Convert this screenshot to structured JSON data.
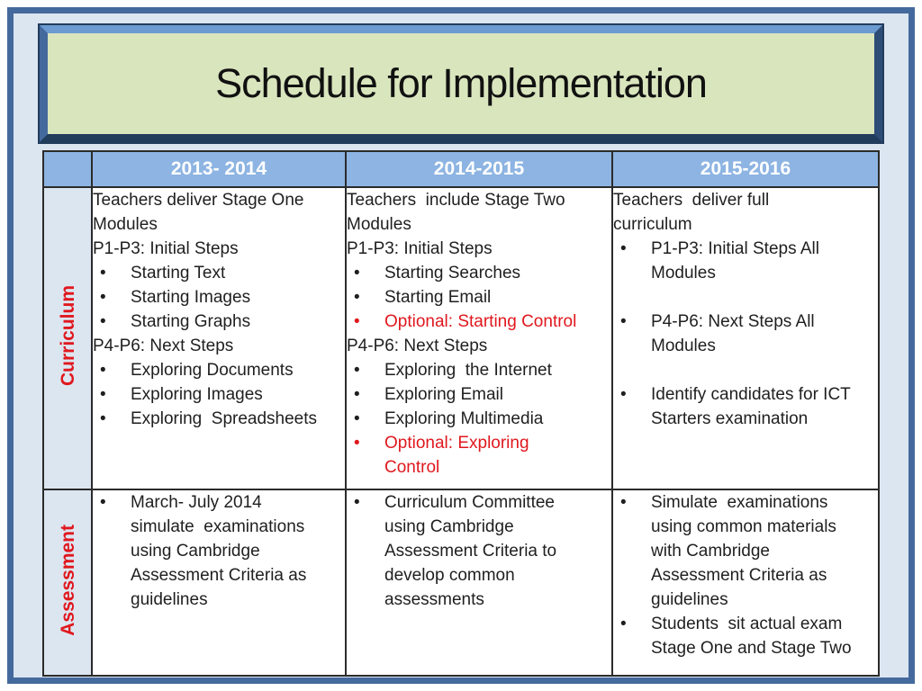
{
  "slide": {
    "title": "Schedule for Implementation"
  },
  "colors": {
    "page_bg": "#FFFFFF",
    "frame_border": "#44699C",
    "slide_bg": "#DCE6F1",
    "title_bg": "#D9E5BD",
    "bevel_top": "#6C9BD2",
    "bevel_left": "#44699C",
    "bevel_right": "#2E4D76",
    "bevel_bottom": "#223C5C",
    "title_text": "#111111",
    "header_bg": "#8DB4E2",
    "header_text": "#FFFFFF",
    "label_bg": "#DCE6F1",
    "accent_red": "#E0181E",
    "cell_bg": "#FFFFFF",
    "body_text": "#1F1F1F",
    "table_border": "#2B2B2B"
  },
  "table": {
    "corner": "",
    "columns": [
      "2013- 2014",
      "2014-2015",
      "2015-2016"
    ],
    "rows": [
      {
        "label": "Curriculum",
        "cells": [
          {
            "lines": [
              {
                "kind": "plain",
                "t": "Teachers deliver Stage One\nModules"
              },
              {
                "kind": "plain",
                "t": "P1-P3: Initial Steps"
              },
              {
                "kind": "bullet",
                "t": "Starting Text"
              },
              {
                "kind": "bullet",
                "t": "Starting Images"
              },
              {
                "kind": "bullet",
                "t": "Starting Graphs"
              },
              {
                "kind": "plain",
                "t": "P4-P6: Next Steps"
              },
              {
                "kind": "bullet",
                "t": "Exploring Documents"
              },
              {
                "kind": "bullet",
                "t": "Exploring Images"
              },
              {
                "kind": "bullet",
                "t": "Exploring  Spreadsheets"
              }
            ]
          },
          {
            "lines": [
              {
                "kind": "plain",
                "t": "Teachers  include Stage Two\nModules"
              },
              {
                "kind": "plain",
                "t": "P1-P3: Initial Steps"
              },
              {
                "kind": "bullet",
                "t": "Starting Searches"
              },
              {
                "kind": "bullet",
                "t": "Starting Email"
              },
              {
                "kind": "bullet",
                "t": "Optional: Starting Control",
                "red": true
              },
              {
                "kind": "plain",
                "t": "P4-P6: Next Steps"
              },
              {
                "kind": "bullet",
                "t": "Exploring  the Internet"
              },
              {
                "kind": "bullet",
                "t": "Exploring Email"
              },
              {
                "kind": "bullet",
                "t": "Exploring Multimedia"
              },
              {
                "kind": "bullet",
                "t": "Optional: Exploring\nControl",
                "red": true
              }
            ]
          },
          {
            "lines": [
              {
                "kind": "plain",
                "t": "Teachers  deliver full\ncurriculum"
              },
              {
                "kind": "bullet",
                "t": "P1-P3: Initial Steps All\nModules"
              },
              {
                "kind": "gap"
              },
              {
                "kind": "bullet",
                "t": "P4-P6: Next Steps All\nModules"
              },
              {
                "kind": "gap"
              },
              {
                "kind": "bullet",
                "t": "Identify candidates for ICT\nStarters examination"
              }
            ]
          }
        ]
      },
      {
        "label": "Assessment",
        "cells": [
          {
            "lines": [
              {
                "kind": "bullet",
                "t": "March- July 2014\nsimulate  examinations\nusing Cambridge\nAssessment Criteria as\nguidelines"
              }
            ]
          },
          {
            "lines": [
              {
                "kind": "bullet",
                "t": "Curriculum Committee\nusing Cambridge\nAssessment Criteria to\ndevelop common\nassessments"
              }
            ]
          },
          {
            "lines": [
              {
                "kind": "bullet",
                "t": "Simulate  examinations\nusing common materials\nwith Cambridge\nAssessment Criteria as\nguidelines"
              },
              {
                "kind": "bullet",
                "t": "Students  sit actual exam\nStage One and Stage Two"
              }
            ]
          }
        ]
      }
    ]
  }
}
